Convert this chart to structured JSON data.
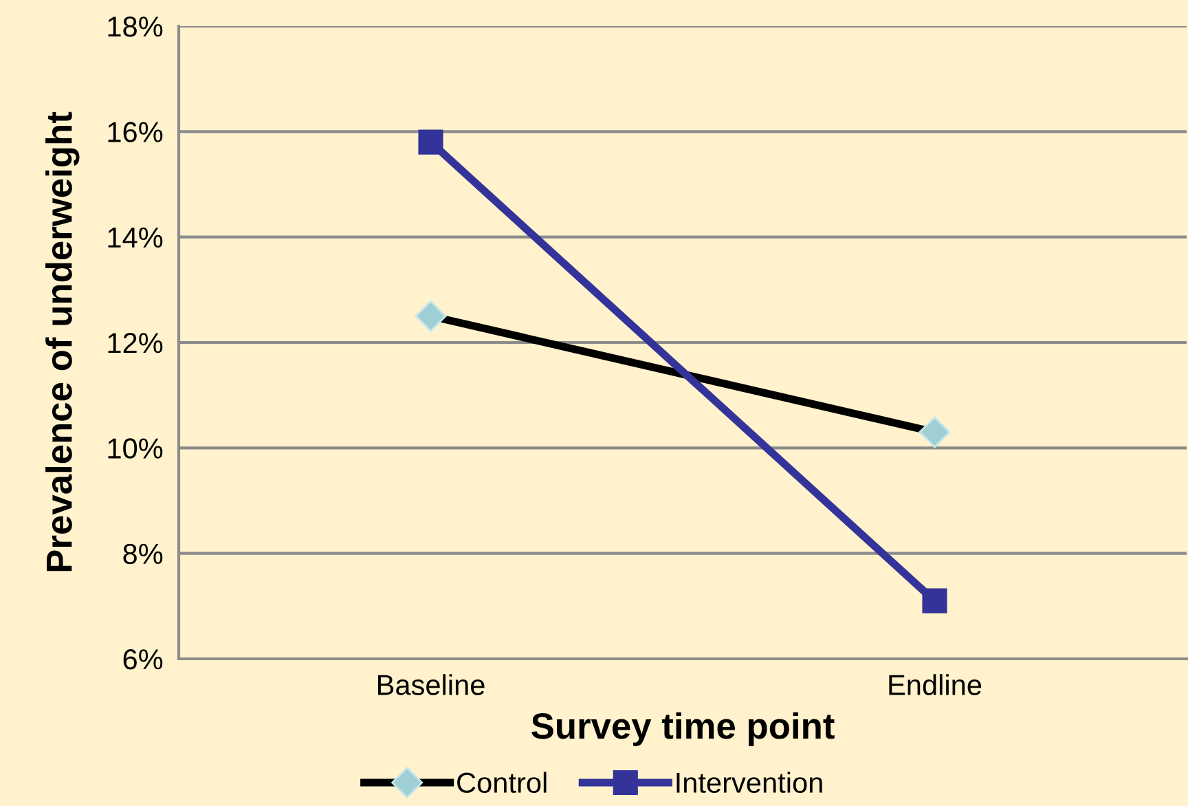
{
  "chart_data": {
    "type": "line",
    "xlabel": "Survey time point",
    "ylabel": "Prevalence of underweight",
    "categories": [
      "Baseline",
      "Endline"
    ],
    "series": [
      {
        "name": "Control",
        "color": "#000000",
        "marker": "diamond",
        "values": [
          12.5,
          10.3
        ]
      },
      {
        "name": "Intervention",
        "color": "#333399",
        "marker": "square",
        "values": [
          15.8,
          7.1
        ]
      }
    ],
    "ylim": [
      6,
      18
    ],
    "yticks": [
      {
        "value": 6,
        "label": "6%"
      },
      {
        "value": 8,
        "label": "8%"
      },
      {
        "value": 10,
        "label": "10%"
      },
      {
        "value": 12,
        "label": "12%"
      },
      {
        "value": 14,
        "label": "14%"
      },
      {
        "value": 16,
        "label": "16%"
      },
      {
        "value": 18,
        "label": "18%"
      }
    ],
    "grid": "y",
    "legend": "bottom",
    "line_style": "solid"
  }
}
